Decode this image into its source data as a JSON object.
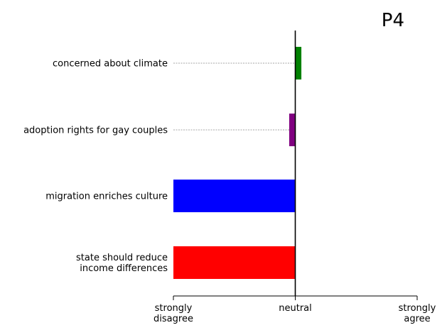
{
  "chart_data": {
    "type": "bar",
    "orientation": "horizontal",
    "title": "P4",
    "categories": [
      "concerned about climate",
      "adoption rights for gay couples",
      "migration enriches culture",
      "state should reduce\nincome differences"
    ],
    "values": [
      0.05,
      -0.05,
      -1.0,
      -1.0
    ],
    "colors": [
      "#008000",
      "#800080",
      "#0000ff",
      "#ff0000"
    ],
    "xlim": [
      -1,
      1
    ],
    "xticks": [
      {
        "value": -1,
        "label": "strongly\ndisagree"
      },
      {
        "value": 0,
        "label": "neutral"
      },
      {
        "value": 1,
        "label": "strongly\nagree"
      }
    ],
    "xlabel": "",
    "ylabel": "",
    "grid": false,
    "legend": "none",
    "guide_lines": "dashed gray from labels to bars",
    "zero_line": true
  }
}
